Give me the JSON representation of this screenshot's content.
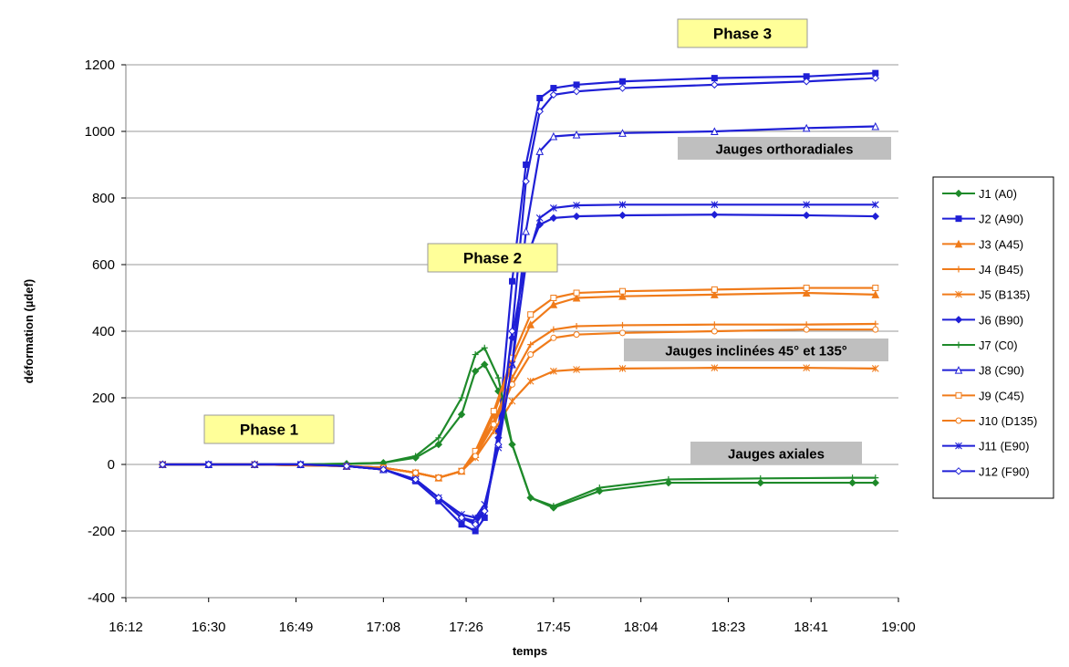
{
  "colors": {
    "blue": "#1f1fd6",
    "orange": "#f07b1a",
    "green": "#1e8a2a",
    "phase_box": "#ffff99",
    "label_box": "#bfbfbf",
    "grid": "#9a9a9a"
  },
  "chart_data": {
    "type": "line",
    "xlabel": "temps",
    "ylabel": "déformation (µdef)",
    "ylim": [
      -400,
      1200
    ],
    "yticks": [
      -400,
      -200,
      0,
      200,
      400,
      600,
      800,
      1000,
      1200
    ],
    "xticks": [
      "16:12",
      "16:30",
      "16:49",
      "17:08",
      "17:26",
      "17:45",
      "18:04",
      "18:23",
      "18:41",
      "19:00"
    ],
    "grid": "horizontal",
    "legend_position": "right",
    "phase_labels": [
      "Phase 1",
      "Phase 2",
      "Phase 3"
    ],
    "group_labels": [
      "Jauges orthoradiales",
      "Jauges inclinées 45° et 135°",
      "Jauges axiales"
    ],
    "series": [
      {
        "name": "J1 (A0)",
        "color": "green",
        "marker": "diamond",
        "x": [
          "16:20",
          "16:30",
          "16:40",
          "16:50",
          "17:00",
          "17:08",
          "17:15",
          "17:20",
          "17:25",
          "17:28",
          "17:30",
          "17:33",
          "17:36",
          "17:40",
          "17:45",
          "17:55",
          "18:10",
          "18:30",
          "18:50",
          "18:55"
        ],
        "values": [
          0,
          0,
          0,
          0,
          2,
          5,
          20,
          60,
          150,
          280,
          300,
          220,
          60,
          -100,
          -130,
          -80,
          -55,
          -55,
          -55,
          -55
        ]
      },
      {
        "name": "J2 (A90)",
        "color": "blue",
        "marker": "square",
        "x": [
          "16:20",
          "16:30",
          "16:40",
          "16:50",
          "17:00",
          "17:08",
          "17:15",
          "17:20",
          "17:25",
          "17:28",
          "17:30",
          "17:33",
          "17:36",
          "17:39",
          "17:42",
          "17:45",
          "17:50",
          "18:00",
          "18:20",
          "18:40",
          "18:55"
        ],
        "values": [
          0,
          0,
          0,
          0,
          -5,
          -15,
          -50,
          -110,
          -180,
          -200,
          -160,
          100,
          550,
          900,
          1100,
          1130,
          1140,
          1150,
          1160,
          1165,
          1175
        ]
      },
      {
        "name": "J3 (A45)",
        "color": "orange",
        "marker": "triangle",
        "x": [
          "16:20",
          "16:40",
          "17:00",
          "17:08",
          "17:15",
          "17:20",
          "17:25",
          "17:28",
          "17:32",
          "17:36",
          "17:40",
          "17:45",
          "17:50",
          "18:00",
          "18:20",
          "18:40",
          "18:55"
        ],
        "values": [
          0,
          0,
          -5,
          -10,
          -25,
          -40,
          -20,
          30,
          150,
          300,
          420,
          480,
          500,
          505,
          510,
          515,
          510
        ]
      },
      {
        "name": "J4 (B45)",
        "color": "orange",
        "marker": "plus",
        "x": [
          "16:20",
          "16:40",
          "17:00",
          "17:08",
          "17:15",
          "17:20",
          "17:25",
          "17:28",
          "17:32",
          "17:36",
          "17:40",
          "17:45",
          "17:50",
          "18:00",
          "18:20",
          "18:40",
          "18:55"
        ],
        "values": [
          0,
          0,
          -5,
          -10,
          -25,
          -40,
          -20,
          30,
          130,
          260,
          360,
          405,
          415,
          418,
          420,
          420,
          422
        ]
      },
      {
        "name": "J5 (B135)",
        "color": "orange",
        "marker": "star",
        "x": [
          "16:20",
          "16:40",
          "17:00",
          "17:08",
          "17:15",
          "17:20",
          "17:25",
          "17:28",
          "17:32",
          "17:36",
          "17:40",
          "17:45",
          "17:50",
          "18:00",
          "18:20",
          "18:40",
          "18:55"
        ],
        "values": [
          0,
          0,
          -5,
          -10,
          -25,
          -40,
          -20,
          20,
          100,
          190,
          250,
          280,
          285,
          288,
          290,
          290,
          288
        ]
      },
      {
        "name": "J6 (B90)",
        "color": "blue",
        "marker": "diamond",
        "x": [
          "16:20",
          "16:30",
          "16:40",
          "16:50",
          "17:00",
          "17:08",
          "17:15",
          "17:20",
          "17:25",
          "17:28",
          "17:30",
          "17:33",
          "17:36",
          "17:39",
          "17:42",
          "17:45",
          "17:50",
          "18:00",
          "18:20",
          "18:40",
          "18:55"
        ],
        "values": [
          0,
          0,
          0,
          0,
          -5,
          -15,
          -45,
          -100,
          -160,
          -175,
          -140,
          80,
          380,
          620,
          720,
          740,
          745,
          748,
          750,
          748,
          745
        ]
      },
      {
        "name": "J7 (C0)",
        "color": "green",
        "marker": "plus",
        "x": [
          "16:20",
          "16:30",
          "16:40",
          "16:50",
          "17:00",
          "17:08",
          "17:15",
          "17:20",
          "17:25",
          "17:28",
          "17:30",
          "17:33",
          "17:36",
          "17:40",
          "17:45",
          "17:55",
          "18:10",
          "18:30",
          "18:50",
          "18:55"
        ],
        "values": [
          0,
          0,
          0,
          0,
          2,
          5,
          25,
          80,
          200,
          330,
          350,
          260,
          60,
          -100,
          -125,
          -70,
          -45,
          -42,
          -40,
          -40
        ]
      },
      {
        "name": "J8 (C90)",
        "color": "blue",
        "marker": "triangle-open",
        "x": [
          "16:20",
          "16:30",
          "16:40",
          "16:50",
          "17:00",
          "17:08",
          "17:15",
          "17:20",
          "17:25",
          "17:28",
          "17:30",
          "17:33",
          "17:36",
          "17:39",
          "17:42",
          "17:45",
          "17:50",
          "18:00",
          "18:20",
          "18:40",
          "18:55"
        ],
        "values": [
          0,
          0,
          0,
          0,
          -5,
          -15,
          -45,
          -100,
          -160,
          -170,
          -130,
          60,
          300,
          700,
          940,
          985,
          990,
          995,
          1000,
          1010,
          1015
        ]
      },
      {
        "name": "J9 (C45)",
        "color": "orange",
        "marker": "square-open",
        "x": [
          "16:20",
          "16:40",
          "17:00",
          "17:08",
          "17:15",
          "17:20",
          "17:25",
          "17:28",
          "17:32",
          "17:36",
          "17:40",
          "17:45",
          "17:50",
          "18:00",
          "18:20",
          "18:40",
          "18:55"
        ],
        "values": [
          0,
          0,
          -5,
          -10,
          -25,
          -40,
          -20,
          40,
          160,
          320,
          450,
          500,
          515,
          520,
          525,
          530,
          530
        ]
      },
      {
        "name": "J10 (D135)",
        "color": "orange",
        "marker": "circle-open",
        "x": [
          "16:20",
          "16:40",
          "17:00",
          "17:08",
          "17:15",
          "17:20",
          "17:25",
          "17:28",
          "17:32",
          "17:36",
          "17:40",
          "17:45",
          "17:50",
          "18:00",
          "18:20",
          "18:40",
          "18:55"
        ],
        "values": [
          0,
          0,
          -5,
          -10,
          -25,
          -40,
          -20,
          25,
          120,
          240,
          330,
          380,
          390,
          395,
          400,
          405,
          405
        ]
      },
      {
        "name": "J11 (E90)",
        "color": "blue",
        "marker": "star",
        "x": [
          "16:20",
          "16:30",
          "16:40",
          "16:50",
          "17:00",
          "17:08",
          "17:15",
          "17:20",
          "17:25",
          "17:28",
          "17:30",
          "17:33",
          "17:36",
          "17:39",
          "17:42",
          "17:45",
          "17:50",
          "18:00",
          "18:20",
          "18:40",
          "18:55"
        ],
        "values": [
          0,
          0,
          0,
          0,
          -5,
          -15,
          -45,
          -100,
          -150,
          -160,
          -120,
          50,
          300,
          600,
          740,
          770,
          778,
          780,
          780,
          780,
          780
        ]
      },
      {
        "name": "J12 (F90)",
        "color": "blue",
        "marker": "diamond-open",
        "x": [
          "16:20",
          "16:30",
          "16:40",
          "16:50",
          "17:00",
          "17:08",
          "17:15",
          "17:20",
          "17:25",
          "17:28",
          "17:30",
          "17:33",
          "17:36",
          "17:39",
          "17:42",
          "17:45",
          "17:50",
          "18:00",
          "18:20",
          "18:40",
          "18:55"
        ],
        "values": [
          0,
          0,
          0,
          0,
          -5,
          -15,
          -45,
          -100,
          -160,
          -180,
          -140,
          60,
          400,
          850,
          1060,
          1110,
          1120,
          1130,
          1140,
          1150,
          1160
        ]
      }
    ]
  }
}
